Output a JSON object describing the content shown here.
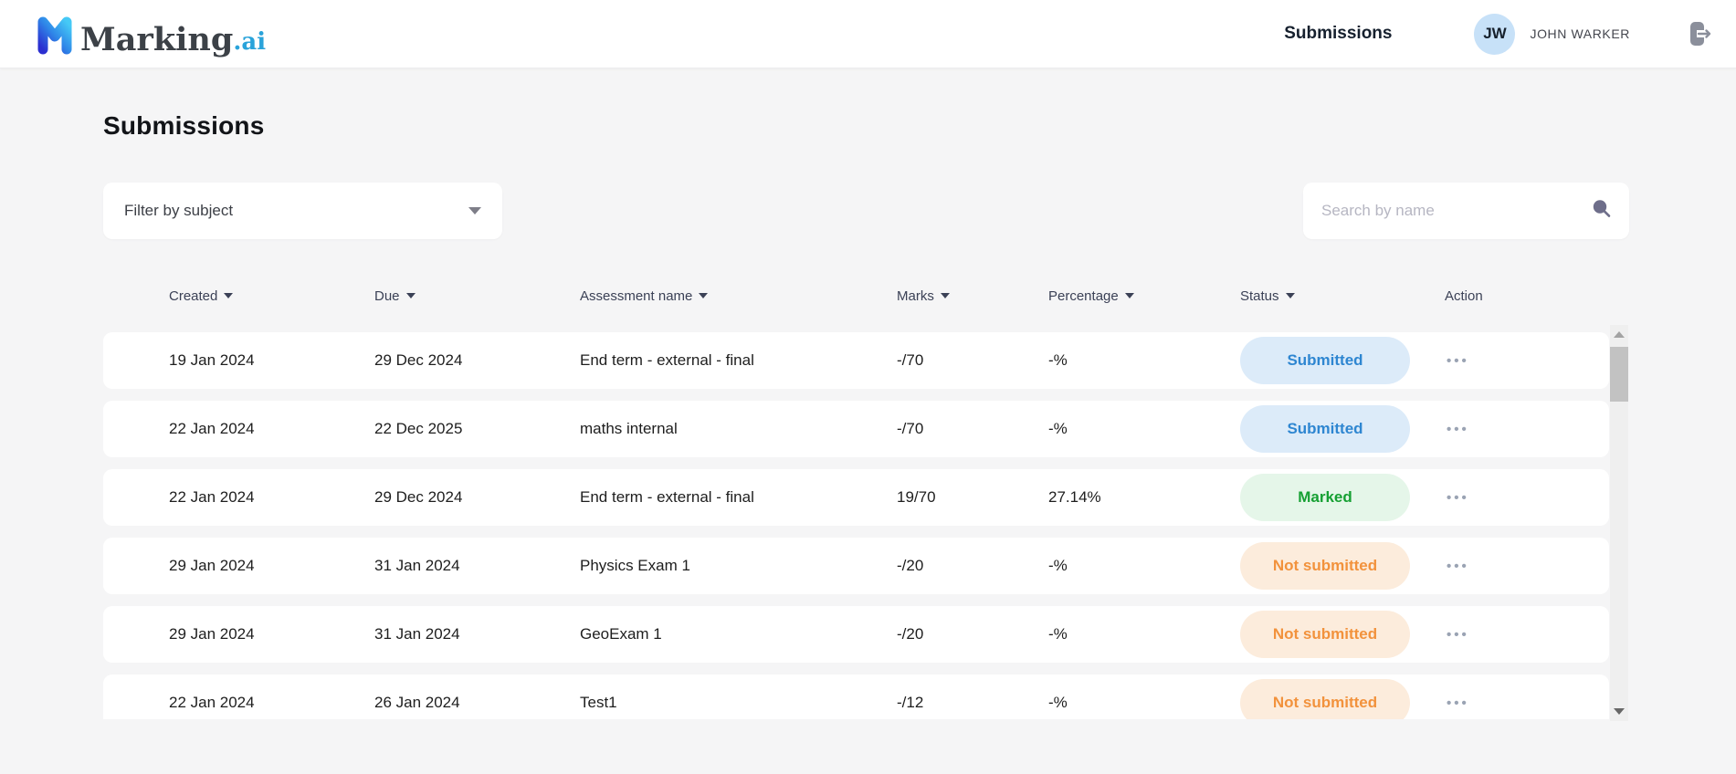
{
  "brand": {
    "name_main": "Marking",
    "name_suffix": ".ai",
    "gradient_start": "#2b2fd0",
    "gradient_mid": "#2f86e8",
    "gradient_end": "#45c9f6"
  },
  "header": {
    "nav_submissions_label": "Submissions",
    "user": {
      "initials": "JW",
      "name": "JOHN WARKER"
    }
  },
  "page": {
    "title": "Submissions"
  },
  "filters": {
    "subject_label": "Filter by subject",
    "search_placeholder": "Search by name"
  },
  "table": {
    "columns": [
      {
        "label": "Created",
        "sortable": true
      },
      {
        "label": "Due",
        "sortable": true
      },
      {
        "label": "Assessment name",
        "sortable": true
      },
      {
        "label": "Marks",
        "sortable": true
      },
      {
        "label": "Percentage",
        "sortable": true
      },
      {
        "label": "Status",
        "sortable": true
      },
      {
        "label": "Action",
        "sortable": false
      }
    ],
    "rows": [
      {
        "created": "19 Jan 2024",
        "due": "29 Dec 2024",
        "assessment": "End term - external - final",
        "marks": "-/70",
        "percentage": "-%",
        "status": "Submitted"
      },
      {
        "created": "22 Jan 2024",
        "due": "22 Dec 2025",
        "assessment": "maths internal",
        "marks": "-/70",
        "percentage": "-%",
        "status": "Submitted"
      },
      {
        "created": "22 Jan 2024",
        "due": "29 Dec 2024",
        "assessment": "End term - external - final",
        "marks": "19/70",
        "percentage": "27.14%",
        "status": "Marked"
      },
      {
        "created": "29 Jan 2024",
        "due": "31 Jan 2024",
        "assessment": "Physics Exam 1",
        "marks": "-/20",
        "percentage": "-%",
        "status": "Not submitted"
      },
      {
        "created": "29 Jan 2024",
        "due": "31 Jan 2024",
        "assessment": "GeoExam 1",
        "marks": "-/20",
        "percentage": "-%",
        "status": "Not submitted"
      },
      {
        "created": "22 Jan 2024",
        "due": "26 Jan 2024",
        "assessment": "Test1",
        "marks": "-/12",
        "percentage": "-%",
        "status": "Not submitted"
      }
    ],
    "action_label": "•••",
    "status_styles": {
      "Submitted": {
        "bg": "#dcebf9",
        "color": "#2e86d1"
      },
      "Marked": {
        "bg": "#e5f6e9",
        "color": "#16a033"
      },
      "Not submitted": {
        "bg": "#fcecdc",
        "color": "#f2923c"
      }
    }
  }
}
